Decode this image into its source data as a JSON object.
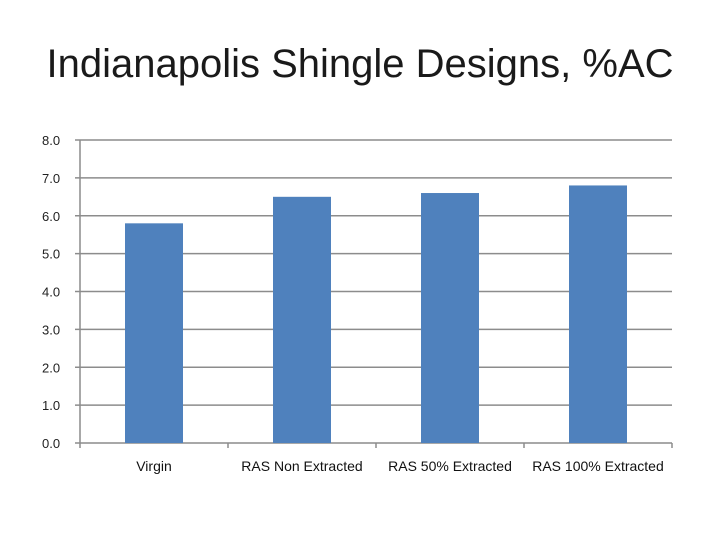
{
  "chart_data": {
    "type": "bar",
    "title": "Indianapolis Shingle Designs, %AC",
    "categories": [
      "Virgin",
      "RAS Non Extracted",
      "RAS 50% Extracted",
      "RAS 100% Extracted"
    ],
    "values": [
      5.8,
      6.5,
      6.6,
      6.8
    ],
    "ylim": [
      0,
      8
    ],
    "yticks": [
      "0.0",
      "1.0",
      "2.0",
      "3.0",
      "4.0",
      "5.0",
      "6.0",
      "7.0",
      "8.0"
    ],
    "grid": true,
    "bar_color": "#4F81BD",
    "grid_color": "#8c8c8c",
    "axis_color": "#8c8c8c"
  }
}
